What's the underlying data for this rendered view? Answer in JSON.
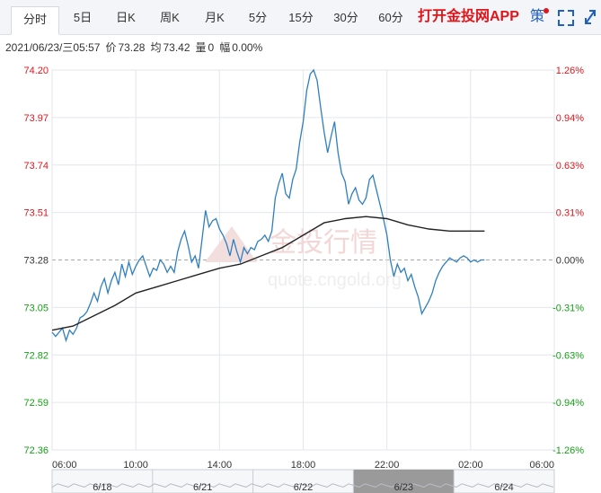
{
  "tabs": [
    {
      "label": "分时",
      "active": true
    },
    {
      "label": "5日"
    },
    {
      "label": "日K"
    },
    {
      "label": "周K"
    },
    {
      "label": "月K"
    },
    {
      "label": "5分"
    },
    {
      "label": "15分"
    },
    {
      "label": "30分"
    },
    {
      "label": "60分"
    }
  ],
  "promo": "打开金投网APP",
  "controls": {
    "strategy_icon_label": "策",
    "fullscreen": "fullscreen-icon",
    "expand": "expand-icon"
  },
  "info": {
    "datetime": "2021/06/23/三05:57",
    "price_label": "价",
    "price": "73.28",
    "avg_label": "均",
    "avg": "73.42",
    "vol_label": "量",
    "vol": "0",
    "pct_label": "幅",
    "pct": "0.00%"
  },
  "watermark": {
    "brand": "金投行情",
    "url": "quote.cngold.org"
  },
  "colors": {
    "price_line": "#2f7fbf",
    "avg_line": "#222222",
    "up": "#e0151b",
    "down": "#14a014",
    "grid": "#e3e6ec",
    "axis_text": "#333333"
  },
  "chart_data": {
    "type": "line",
    "title": "",
    "ylim": [
      72.36,
      74.2
    ],
    "ref_price": 73.28,
    "y_ticks": [
      "74.20",
      "73.97",
      "73.74",
      "73.51",
      "73.28",
      "73.05",
      "72.82",
      "72.59",
      "72.36"
    ],
    "pct_ticks": [
      "1.26%",
      "0.94%",
      "0.63%",
      "0.31%",
      "0.00%",
      "-0.31%",
      "-0.63%",
      "-0.94%",
      "-1.26%"
    ],
    "x_ticks": [
      "06:00",
      "10:00",
      "14:00",
      "18:00",
      "22:00",
      "02:00",
      "06:00"
    ],
    "x_range_minutes": [
      0,
      1440
    ],
    "series": [
      {
        "name": "price",
        "points": [
          [
            0,
            72.93
          ],
          [
            10,
            72.91
          ],
          [
            20,
            72.93
          ],
          [
            30,
            72.95
          ],
          [
            40,
            72.89
          ],
          [
            50,
            72.94
          ],
          [
            60,
            72.92
          ],
          [
            70,
            72.95
          ],
          [
            80,
            73.0
          ],
          [
            90,
            73.01
          ],
          [
            100,
            73.03
          ],
          [
            110,
            73.07
          ],
          [
            120,
            73.12
          ],
          [
            130,
            73.08
          ],
          [
            140,
            73.15
          ],
          [
            150,
            73.19
          ],
          [
            160,
            73.12
          ],
          [
            170,
            73.18
          ],
          [
            180,
            73.22
          ],
          [
            190,
            73.16
          ],
          [
            200,
            73.26
          ],
          [
            210,
            73.2
          ],
          [
            220,
            73.27
          ],
          [
            230,
            73.21
          ],
          [
            240,
            73.25
          ],
          [
            250,
            73.28
          ],
          [
            260,
            73.3
          ],
          [
            270,
            73.25
          ],
          [
            280,
            73.2
          ],
          [
            290,
            73.24
          ],
          [
            300,
            73.23
          ],
          [
            310,
            73.28
          ],
          [
            320,
            73.26
          ],
          [
            330,
            73.22
          ],
          [
            340,
            73.25
          ],
          [
            350,
            73.22
          ],
          [
            360,
            73.32
          ],
          [
            370,
            73.38
          ],
          [
            380,
            73.42
          ],
          [
            390,
            73.35
          ],
          [
            400,
            73.27
          ],
          [
            410,
            73.3
          ],
          [
            420,
            73.24
          ],
          [
            430,
            73.38
          ],
          [
            440,
            73.52
          ],
          [
            450,
            73.44
          ],
          [
            460,
            73.47
          ],
          [
            470,
            73.48
          ],
          [
            480,
            73.43
          ],
          [
            490,
            73.4
          ],
          [
            500,
            73.36
          ],
          [
            510,
            73.3
          ],
          [
            520,
            73.38
          ],
          [
            530,
            73.32
          ],
          [
            540,
            73.27
          ],
          [
            550,
            73.34
          ],
          [
            560,
            73.31
          ],
          [
            570,
            73.34
          ],
          [
            580,
            73.33
          ],
          [
            590,
            73.37
          ],
          [
            600,
            73.38
          ],
          [
            610,
            73.4
          ],
          [
            620,
            73.37
          ],
          [
            630,
            73.42
          ],
          [
            640,
            73.58
          ],
          [
            650,
            73.65
          ],
          [
            660,
            73.7
          ],
          [
            670,
            73.6
          ],
          [
            680,
            73.58
          ],
          [
            690,
            73.67
          ],
          [
            700,
            73.72
          ],
          [
            710,
            73.85
          ],
          [
            720,
            73.95
          ],
          [
            730,
            74.1
          ],
          [
            740,
            74.18
          ],
          [
            750,
            74.2
          ],
          [
            760,
            74.15
          ],
          [
            770,
            74.02
          ],
          [
            780,
            73.9
          ],
          [
            790,
            73.8
          ],
          [
            800,
            73.88
          ],
          [
            810,
            73.95
          ],
          [
            820,
            73.8
          ],
          [
            830,
            73.7
          ],
          [
            840,
            73.66
          ],
          [
            850,
            73.55
          ],
          [
            860,
            73.6
          ],
          [
            870,
            73.63
          ],
          [
            880,
            73.57
          ],
          [
            890,
            73.55
          ],
          [
            900,
            73.58
          ],
          [
            910,
            73.67
          ],
          [
            920,
            73.69
          ],
          [
            930,
            73.62
          ],
          [
            940,
            73.55
          ],
          [
            950,
            73.48
          ],
          [
            960,
            73.4
          ],
          [
            970,
            73.28
          ],
          [
            980,
            73.2
          ],
          [
            990,
            73.26
          ],
          [
            1000,
            73.22
          ],
          [
            1010,
            73.24
          ],
          [
            1020,
            73.18
          ],
          [
            1030,
            73.21
          ],
          [
            1040,
            73.15
          ],
          [
            1050,
            73.1
          ],
          [
            1060,
            73.02
          ],
          [
            1070,
            73.05
          ],
          [
            1080,
            73.08
          ],
          [
            1090,
            73.12
          ],
          [
            1100,
            73.18
          ],
          [
            1110,
            73.22
          ],
          [
            1120,
            73.25
          ],
          [
            1130,
            73.27
          ],
          [
            1140,
            73.29
          ],
          [
            1150,
            73.28
          ],
          [
            1160,
            73.27
          ],
          [
            1170,
            73.29
          ],
          [
            1180,
            73.3
          ],
          [
            1190,
            73.29
          ],
          [
            1200,
            73.27
          ],
          [
            1210,
            73.28
          ],
          [
            1220,
            73.27
          ],
          [
            1230,
            73.28
          ],
          [
            1240,
            73.28
          ]
        ]
      },
      {
        "name": "average",
        "points": [
          [
            0,
            72.94
          ],
          [
            60,
            72.96
          ],
          [
            120,
            73.01
          ],
          [
            180,
            73.06
          ],
          [
            240,
            73.12
          ],
          [
            300,
            73.15
          ],
          [
            360,
            73.18
          ],
          [
            420,
            73.21
          ],
          [
            480,
            73.24
          ],
          [
            540,
            73.26
          ],
          [
            600,
            73.3
          ],
          [
            660,
            73.34
          ],
          [
            720,
            73.4
          ],
          [
            780,
            73.46
          ],
          [
            840,
            73.48
          ],
          [
            900,
            73.49
          ],
          [
            960,
            73.48
          ],
          [
            1020,
            73.45
          ],
          [
            1080,
            73.43
          ],
          [
            1140,
            73.42
          ],
          [
            1200,
            73.42
          ],
          [
            1240,
            73.42
          ]
        ]
      }
    ]
  },
  "navigator": {
    "dates": [
      "6/18",
      "6/21",
      "6/22",
      "6/23",
      "6/24"
    ]
  }
}
